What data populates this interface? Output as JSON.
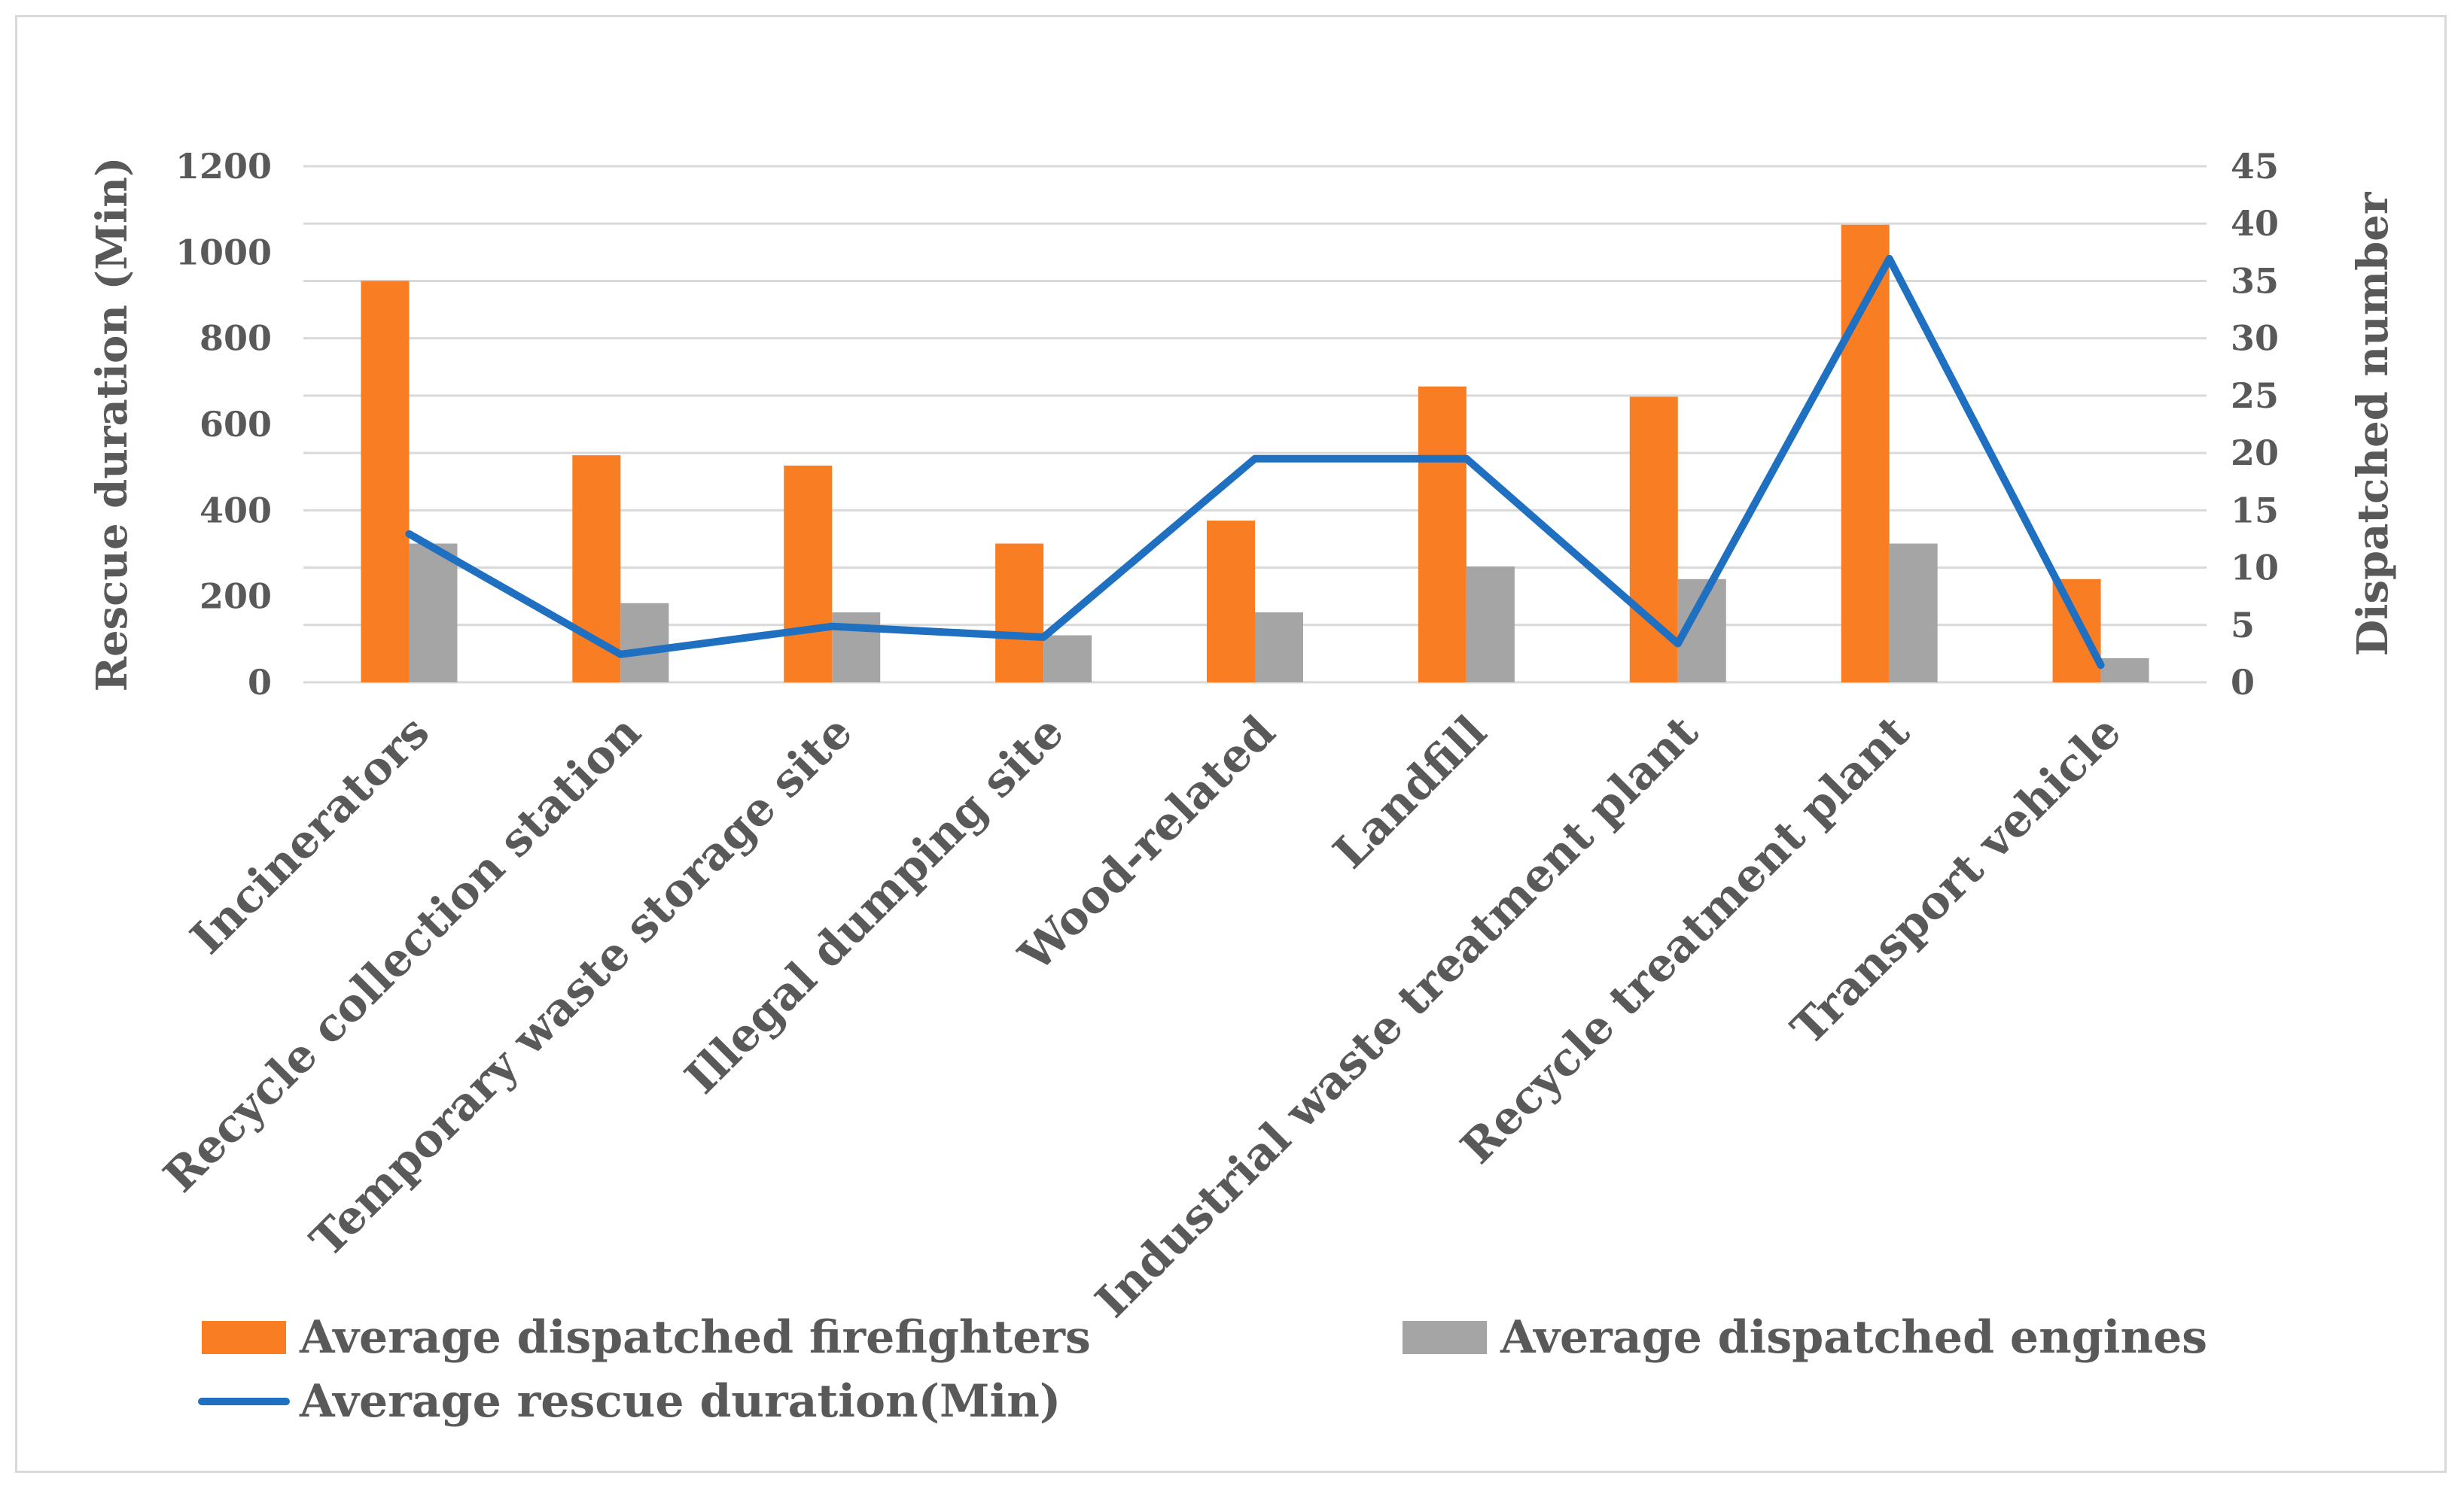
{
  "chart_data": {
    "type": "bar",
    "categories": [
      "Incinerators",
      "Recycle collection station",
      "Temporary waste storage site",
      "Illegal dumping site",
      "Wood-related",
      "Landfill",
      "Industrial waste treatment plant",
      "Recycle treatment plant",
      "Transport vehicle"
    ],
    "series": [
      {
        "name": "Average dispatched firefighters",
        "kind": "bar",
        "axis": "right",
        "color": "#F97D23",
        "values": [
          35,
          19.8,
          18.9,
          12.1,
          14.1,
          25.8,
          24.9,
          39.9,
          9
        ]
      },
      {
        "name": "Average dispatched engines",
        "kind": "bar",
        "axis": "right",
        "color": "#A5A5A5",
        "values": [
          12.1,
          6.9,
          6.1,
          4.1,
          6.1,
          10.1,
          9,
          12.1,
          2.1
        ]
      },
      {
        "name": "Average rescue duration(Min)",
        "kind": "line",
        "axis": "left",
        "color": "#1F70C1",
        "values": [
          345,
          65,
          130,
          105,
          520,
          520,
          90,
          985,
          40
        ]
      }
    ],
    "left_axis": {
      "label": "Rescue duration (Min)",
      "min": 0,
      "max": 1200,
      "ticks": [
        "0",
        "200",
        "400",
        "600",
        "800",
        "1000",
        "1200"
      ]
    },
    "right_axis": {
      "label": "Dispatched number",
      "min": 0,
      "max": 45,
      "ticks": [
        "0",
        "5",
        "10",
        "15",
        "20",
        "25",
        "30",
        "35",
        "40",
        "45"
      ]
    },
    "grid": true,
    "legend_position": "bottom"
  }
}
